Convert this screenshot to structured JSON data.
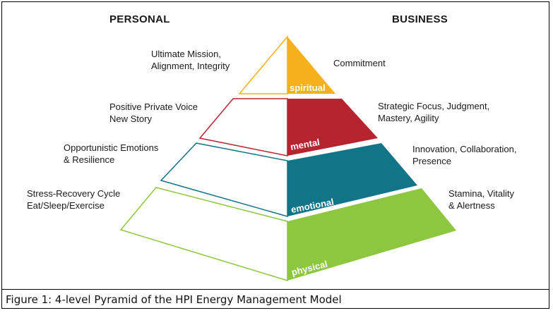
{
  "headings": {
    "personal": "PERSONAL",
    "business": "BUSINESS"
  },
  "colors": {
    "spiritual": "#f5b01b",
    "mental": "#b5242f",
    "emotional": "#127487",
    "physical": "#8dc63f"
  },
  "levels": {
    "spiritual": {
      "name": "spiritual",
      "personal": [
        "Ultimate Mission,",
        "Alignment, Integrity"
      ],
      "business": [
        "Commitment"
      ]
    },
    "mental": {
      "name": "mental",
      "personal": [
        "Positive Private Voice",
        "New Story"
      ],
      "business": [
        "Strategic Focus, Judgment,",
        "Mastery, Agility"
      ]
    },
    "emotional": {
      "name": "emotional",
      "personal": [
        "Opportunistic Emotions",
        "& Resilience"
      ],
      "business": [
        "Innovation, Collaboration,",
        "Presence"
      ]
    },
    "physical": {
      "name": "physical",
      "personal": [
        "Stress-Recovery Cycle",
        "Eat/Sleep/Exercise"
      ],
      "business": [
        "Stamina, Vitality",
        "& Alertness"
      ]
    }
  },
  "caption": "Figure 1: 4-level Pyramid of the HPI Energy Management Model"
}
